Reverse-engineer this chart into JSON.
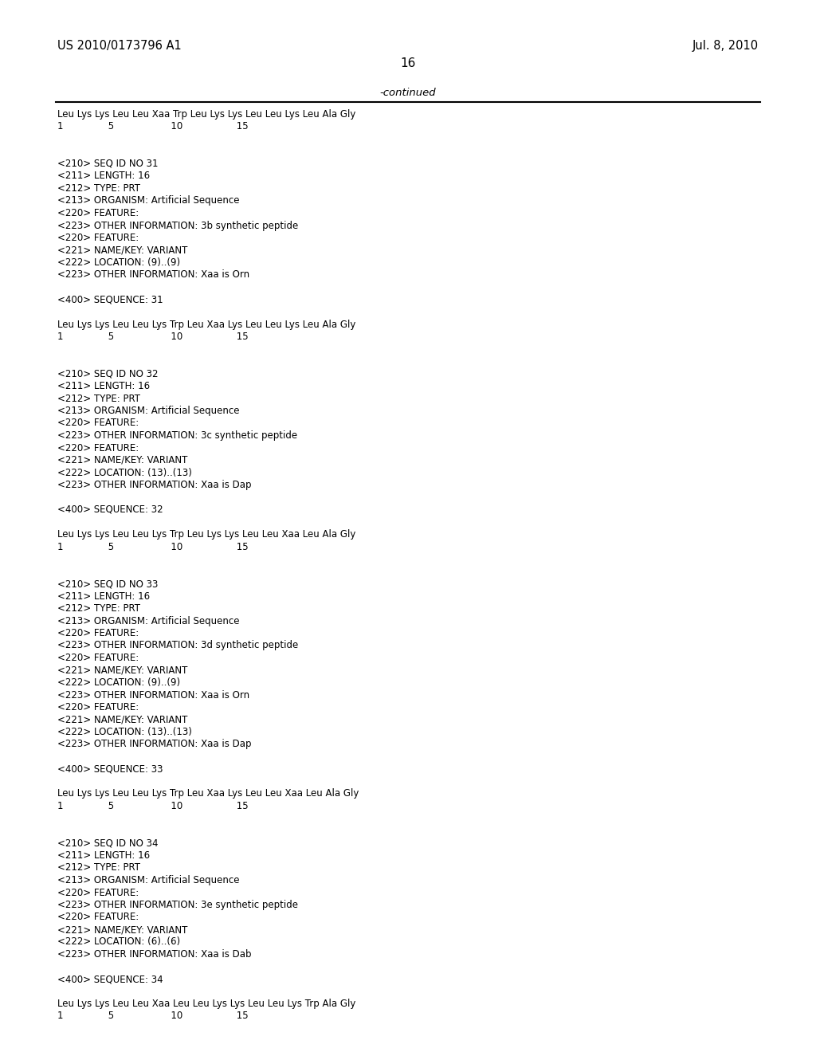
{
  "patent_number": "US 2010/0173796 A1",
  "date": "Jul. 8, 2010",
  "page_number": "16",
  "continued_label": "-continued",
  "background_color": "#ffffff",
  "text_color": "#000000",
  "font_size_header": 10.5,
  "font_size_body": 9.5,
  "font_size_page": 11,
  "content": [
    "Leu Lys Lys Leu Leu Xaa Trp Leu Lys Lys Leu Leu Lys Leu Ala Gly",
    "1               5                   10                  15",
    "",
    "",
    "<210> SEQ ID NO 31",
    "<211> LENGTH: 16",
    "<212> TYPE: PRT",
    "<213> ORGANISM: Artificial Sequence",
    "<220> FEATURE:",
    "<223> OTHER INFORMATION: 3b synthetic peptide",
    "<220> FEATURE:",
    "<221> NAME/KEY: VARIANT",
    "<222> LOCATION: (9)..(9)",
    "<223> OTHER INFORMATION: Xaa is Orn",
    "",
    "<400> SEQUENCE: 31",
    "",
    "Leu Lys Lys Leu Leu Lys Trp Leu Xaa Lys Leu Leu Lys Leu Ala Gly",
    "1               5                   10                  15",
    "",
    "",
    "<210> SEQ ID NO 32",
    "<211> LENGTH: 16",
    "<212> TYPE: PRT",
    "<213> ORGANISM: Artificial Sequence",
    "<220> FEATURE:",
    "<223> OTHER INFORMATION: 3c synthetic peptide",
    "<220> FEATURE:",
    "<221> NAME/KEY: VARIANT",
    "<222> LOCATION: (13)..(13)",
    "<223> OTHER INFORMATION: Xaa is Dap",
    "",
    "<400> SEQUENCE: 32",
    "",
    "Leu Lys Lys Leu Leu Lys Trp Leu Lys Lys Leu Leu Xaa Leu Ala Gly",
    "1               5                   10                  15",
    "",
    "",
    "<210> SEQ ID NO 33",
    "<211> LENGTH: 16",
    "<212> TYPE: PRT",
    "<213> ORGANISM: Artificial Sequence",
    "<220> FEATURE:",
    "<223> OTHER INFORMATION: 3d synthetic peptide",
    "<220> FEATURE:",
    "<221> NAME/KEY: VARIANT",
    "<222> LOCATION: (9)..(9)",
    "<223> OTHER INFORMATION: Xaa is Orn",
    "<220> FEATURE:",
    "<221> NAME/KEY: VARIANT",
    "<222> LOCATION: (13)..(13)",
    "<223> OTHER INFORMATION: Xaa is Dap",
    "",
    "<400> SEQUENCE: 33",
    "",
    "Leu Lys Lys Leu Leu Lys Trp Leu Xaa Lys Leu Leu Xaa Leu Ala Gly",
    "1               5                   10                  15",
    "",
    "",
    "<210> SEQ ID NO 34",
    "<211> LENGTH: 16",
    "<212> TYPE: PRT",
    "<213> ORGANISM: Artificial Sequence",
    "<220> FEATURE:",
    "<223> OTHER INFORMATION: 3e synthetic peptide",
    "<220> FEATURE:",
    "<221> NAME/KEY: VARIANT",
    "<222> LOCATION: (6)..(6)",
    "<223> OTHER INFORMATION: Xaa is Dab",
    "",
    "<400> SEQUENCE: 34",
    "",
    "Leu Lys Lys Leu Leu Xaa Leu Leu Lys Lys Leu Leu Lys Trp Ala Gly",
    "1               5                   10                  15"
  ]
}
